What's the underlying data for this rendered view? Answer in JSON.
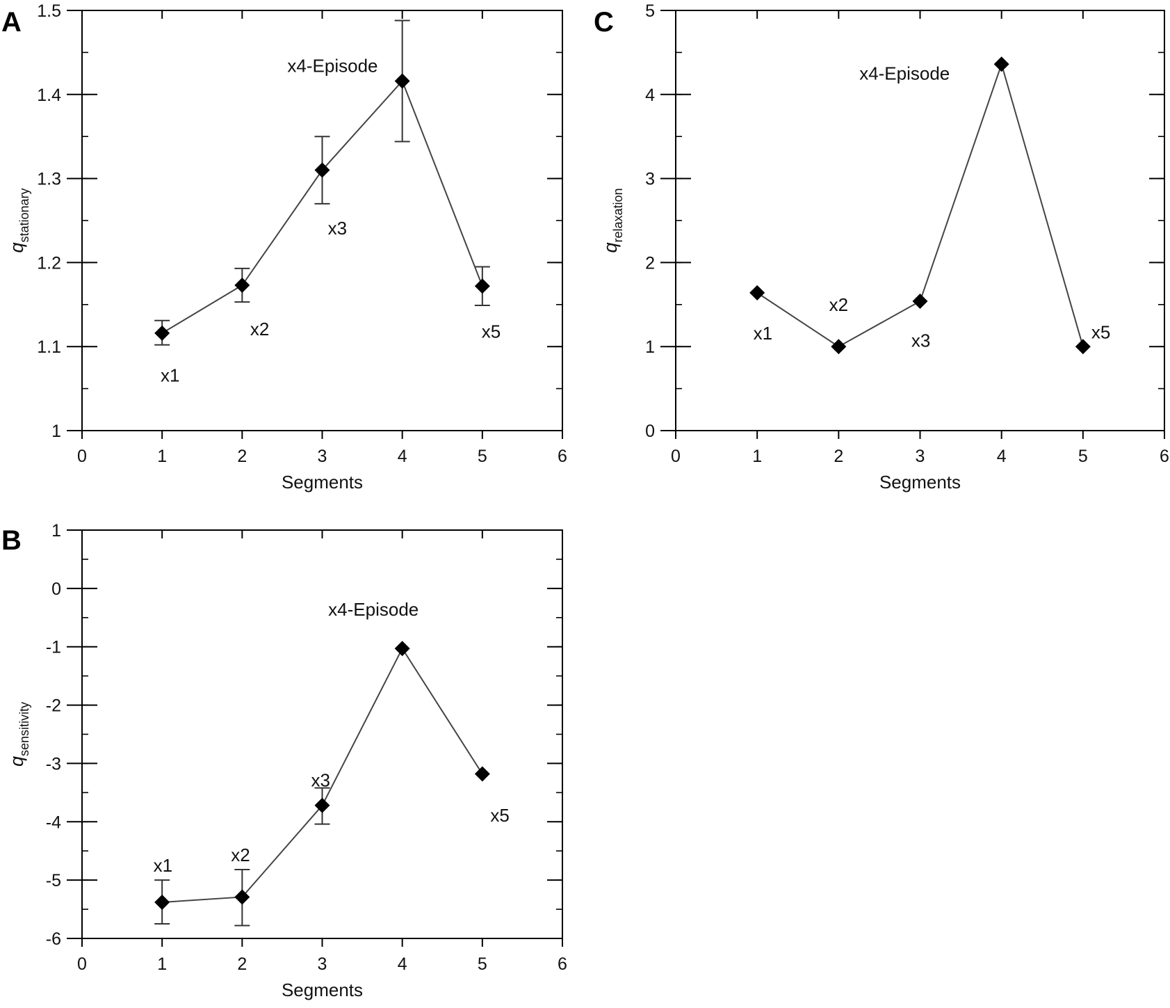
{
  "chart_data": [
    {
      "panel": "A",
      "type": "line",
      "xlabel": "Segments",
      "ylabel": "q",
      "ylabel_sub": "stationary",
      "xlim": [
        0,
        6
      ],
      "ylim": [
        1,
        1.5
      ],
      "x_ticks": [
        "0",
        "1",
        "2",
        "3",
        "4",
        "5",
        "6"
      ],
      "y_ticks": [
        "1",
        "1.1",
        "1.2",
        "1.3",
        "1.4",
        "1.5"
      ],
      "y_tick_values": [
        1,
        1.1,
        1.2,
        1.3,
        1.4,
        1.5
      ],
      "y_minor_step": 0.05,
      "x": [
        1,
        2,
        3,
        4,
        5
      ],
      "y": [
        1.116,
        1.173,
        1.31,
        1.416,
        1.172
      ],
      "err_low": [
        1.102,
        1.153,
        1.27,
        1.344,
        1.149
      ],
      "err_high": [
        1.131,
        1.193,
        1.35,
        1.488,
        1.195
      ],
      "annotations": [
        {
          "text": "x1",
          "x": 1.1,
          "y": 1.066
        },
        {
          "text": "x2",
          "x": 2.22,
          "y": 1.121
        },
        {
          "text": "x3",
          "x": 3.19,
          "y": 1.241
        },
        {
          "text": "x4-Episode",
          "x": 3.13,
          "y": 1.434
        },
        {
          "text": "x5",
          "x": 5.11,
          "y": 1.118
        }
      ]
    },
    {
      "panel": "B",
      "type": "line",
      "xlabel": "Segments",
      "ylabel": "q",
      "ylabel_sub": "sensitivity",
      "xlim": [
        0,
        6
      ],
      "ylim": [
        -6,
        1
      ],
      "x_ticks": [
        "0",
        "1",
        "2",
        "3",
        "4",
        "5",
        "6"
      ],
      "y_ticks": [
        "-6",
        "-5",
        "-4",
        "-3",
        "-2",
        "-1",
        "0",
        "1"
      ],
      "y_tick_values": [
        -6,
        -5,
        -4,
        -3,
        -2,
        -1,
        0,
        1
      ],
      "y_minor_step": 0.5,
      "x": [
        1,
        2,
        3,
        4,
        5
      ],
      "y": [
        -5.38,
        -5.29,
        -3.72,
        -1.03,
        -3.18
      ],
      "err_low": [
        -5.75,
        -5.78,
        -4.04,
        null,
        null
      ],
      "err_high": [
        -5.0,
        -4.82,
        -3.42,
        null,
        null
      ],
      "annotations": [
        {
          "text": "x1",
          "x": 1.01,
          "y": -4.75
        },
        {
          "text": "x2",
          "x": 1.98,
          "y": -4.57
        },
        {
          "text": "x3",
          "x": 2.98,
          "y": -3.29
        },
        {
          "text": "x4-Episode",
          "x": 3.64,
          "y": -0.36
        },
        {
          "text": "x5",
          "x": 5.22,
          "y": -3.89
        }
      ]
    },
    {
      "panel": "C",
      "type": "line",
      "xlabel": "Segments",
      "ylabel": "q",
      "ylabel_sub": "relaxation",
      "xlim": [
        0,
        6
      ],
      "ylim": [
        0,
        5
      ],
      "x_ticks": [
        "0",
        "1",
        "2",
        "3",
        "4",
        "5",
        "6"
      ],
      "y_ticks": [
        "0",
        "1",
        "2",
        "3",
        "4",
        "5"
      ],
      "y_tick_values": [
        0,
        1,
        2,
        3,
        4,
        5
      ],
      "y_minor_step": 0.5,
      "x": [
        1,
        2,
        3,
        4,
        5
      ],
      "y": [
        1.64,
        1.0,
        1.54,
        4.36,
        1.0
      ],
      "annotations": [
        {
          "text": "x1",
          "x": 1.07,
          "y": 1.16
        },
        {
          "text": "x2",
          "x": 2.0,
          "y": 1.5
        },
        {
          "text": "x3",
          "x": 3.01,
          "y": 1.07
        },
        {
          "text": "x4-Episode",
          "x": 2.81,
          "y": 4.25
        },
        {
          "text": "x5",
          "x": 5.22,
          "y": 1.17
        }
      ]
    }
  ]
}
